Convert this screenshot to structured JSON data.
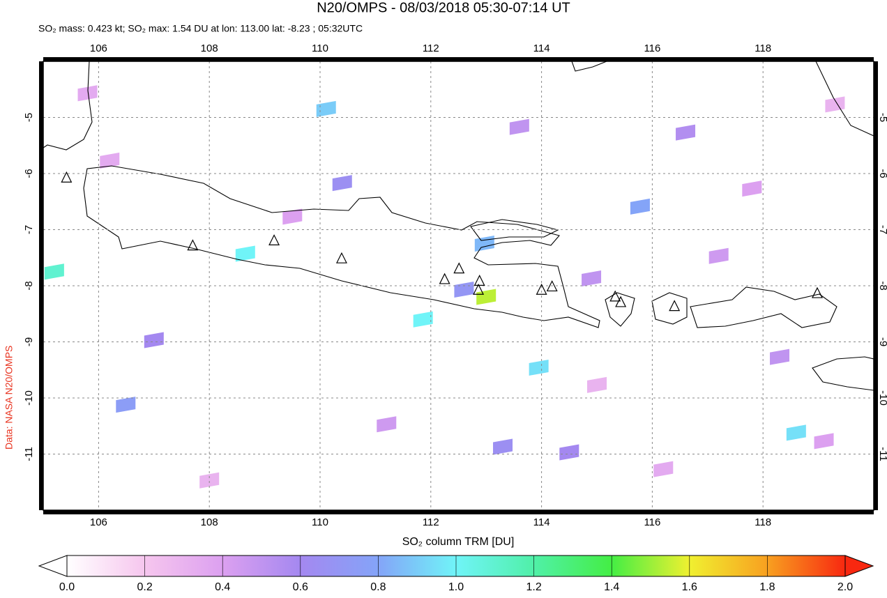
{
  "chart_data": {
    "type": "map",
    "title": "N20/OMPS - 08/03/2018 05:30-07:14 UT",
    "subtitle": "SO₂ mass: 0.423 kt; SO₂ max: 1.54 DU at lon: 113.00 lat: -8.23 ; 05:32UTC",
    "source": "Data: NASA N20/OMPS",
    "colorbar_label": "SO₂ column TRM [DU]",
    "xlim": [
      105,
      120
    ],
    "ylim": [
      -12,
      -4
    ],
    "xticks": [
      106,
      108,
      110,
      112,
      114,
      116,
      118
    ],
    "yticks": [
      -5,
      -6,
      -7,
      -8,
      -9,
      -10,
      -11
    ],
    "grid": true,
    "clim": [
      0,
      2
    ],
    "cticks": [
      {
        "value": 0,
        "label": "0.0"
      },
      {
        "value": 0.2,
        "label": "0.2"
      },
      {
        "value": 0.4,
        "label": "0.4"
      },
      {
        "value": 0.6,
        "label": "0.6"
      },
      {
        "value": 0.8,
        "label": "0.8"
      },
      {
        "value": 1.0,
        "label": "1.0"
      },
      {
        "value": 1.2,
        "label": "1.2"
      },
      {
        "value": 1.4,
        "label": "1.4"
      },
      {
        "value": 1.6,
        "label": "1.6"
      },
      {
        "value": 1.8,
        "label": "1.8"
      },
      {
        "value": 2.0,
        "label": "2.0"
      }
    ],
    "colormap": [
      "#ffffff",
      "#f6c6ee",
      "#dca0f0",
      "#a488f0",
      "#84a4f8",
      "#70f4f8",
      "#50f0a8",
      "#44ee44",
      "#f0f030",
      "#f8a020",
      "#f82810"
    ],
    "pixels": {
      "lon": [
        113.0,
        110.11,
        105.2,
        108.65,
        111.86,
        113.95,
        118.6,
        115.78,
        106.49,
        112.97,
        107.0,
        110.4,
        112.6,
        113.6,
        114.5,
        116.6,
        117.2,
        118.3,
        119.1,
        106.2,
        109.5,
        111.2,
        115.0,
        116.2,
        117.8,
        113.3,
        108.0,
        105.8,
        114.9,
        119.3
      ],
      "lat": [
        -8.23,
        -4.88,
        -7.78,
        -7.46,
        -8.63,
        -9.49,
        -10.65,
        -6.62,
        -10.15,
        -7.28,
        -9.0,
        -6.2,
        -8.1,
        -5.2,
        -11.0,
        -5.3,
        -7.5,
        -9.3,
        -10.8,
        -5.8,
        -6.8,
        -10.5,
        -9.8,
        -11.3,
        -6.3,
        -10.9,
        -11.5,
        -4.6,
        -7.9,
        -4.8
      ],
      "values": [
        1.54,
        0.9,
        1.1,
        1.0,
        1.0,
        0.95,
        0.95,
        0.8,
        0.75,
        0.85,
        0.6,
        0.65,
        0.7,
        0.5,
        0.6,
        0.55,
        0.45,
        0.5,
        0.4,
        0.35,
        0.4,
        0.45,
        0.3,
        0.35,
        0.4,
        0.65,
        0.3,
        0.35,
        0.5,
        0.3
      ]
    },
    "volcanoes": {
      "lon": [
        105.42,
        107.7,
        109.17,
        110.39,
        112.25,
        112.51,
        112.88,
        112.86,
        114.0,
        114.19,
        115.33,
        115.43,
        116.4,
        118.98
      ],
      "lat": [
        -6.09,
        -7.3,
        -7.21,
        -7.53,
        -7.9,
        -7.71,
        -7.93,
        -8.09,
        -8.09,
        -8.03,
        -8.21,
        -8.31,
        -8.38,
        -8.15
      ]
    }
  }
}
